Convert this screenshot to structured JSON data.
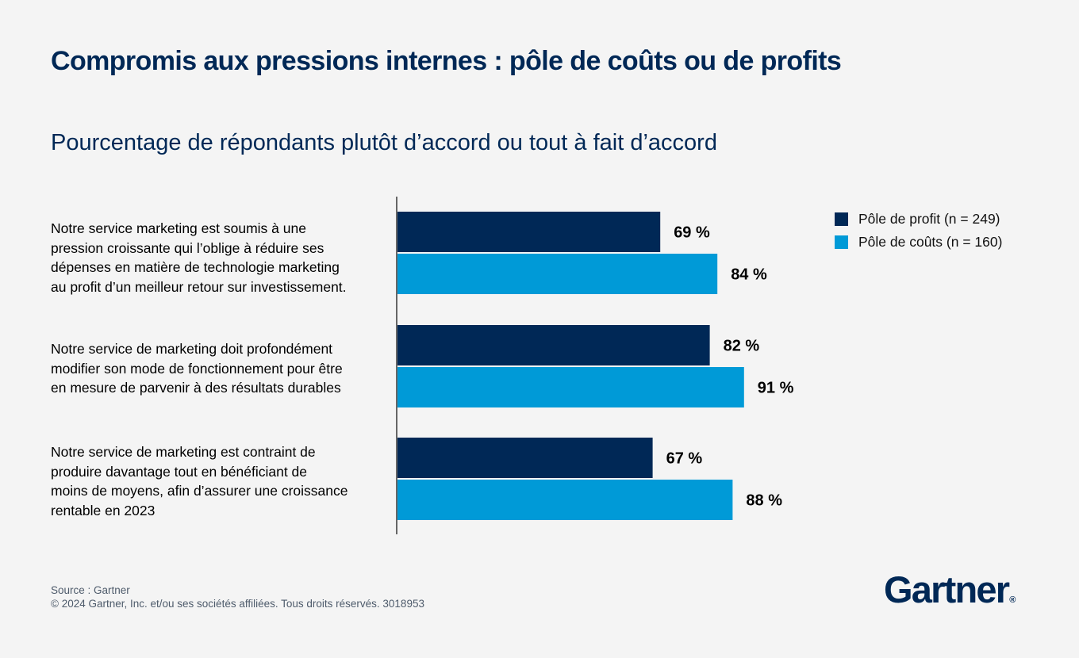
{
  "title": "Compromis aux pressions internes : pôle de coûts ou de profits",
  "subtitle": "Pourcentage de répondants plutôt d’accord ou tout à fait d’accord",
  "colors": {
    "profit": "#002856",
    "costs": "#009ad7",
    "axis": "#666666",
    "background": "#f4f4f4"
  },
  "chart_data": {
    "type": "bar",
    "orientation": "horizontal",
    "categories": [
      "Notre service marketing est soumis à une\npression croissante qui l’oblige à réduire ses\ndépenses en matière de technologie marketing\nau profit d’un meilleur retour sur investissement.",
      "Notre service de marketing doit profondément\nmodifier son mode de fonctionnement pour être\nen mesure de parvenir à des résultats durables",
      "Notre service de marketing est contraint de\nproduire davantage tout en bénéficiant de\nmoins de moyens, afin d’assurer une croissance\nrentable en 2023"
    ],
    "series": [
      {
        "name": "Pôle de profit (n = 249)",
        "values": [
          69,
          82,
          67
        ],
        "labels": [
          "69 %",
          "82 %",
          "67 %"
        ],
        "color": "#002856"
      },
      {
        "name": "Pôle de coûts (n = 160)",
        "values": [
          84,
          91,
          88
        ],
        "labels": [
          "84 %",
          "91 %",
          "88 %"
        ],
        "color": "#009ad7"
      }
    ],
    "xlim": [
      0,
      100
    ],
    "grid": false,
    "legend_position": "top-right"
  },
  "legend": {
    "items": [
      {
        "label": "Pôle de profit (n = 249)",
        "color": "#002856"
      },
      {
        "label": "Pôle de coûts (n = 160)",
        "color": "#009ad7"
      }
    ]
  },
  "footer": {
    "source": "Source : Gartner",
    "copyright": "© 2024 Gartner, Inc. et/ou ses sociétés affiliées. Tous droits réservés. 3018953"
  },
  "logo": {
    "text": "Gartner",
    "mark": "®"
  }
}
